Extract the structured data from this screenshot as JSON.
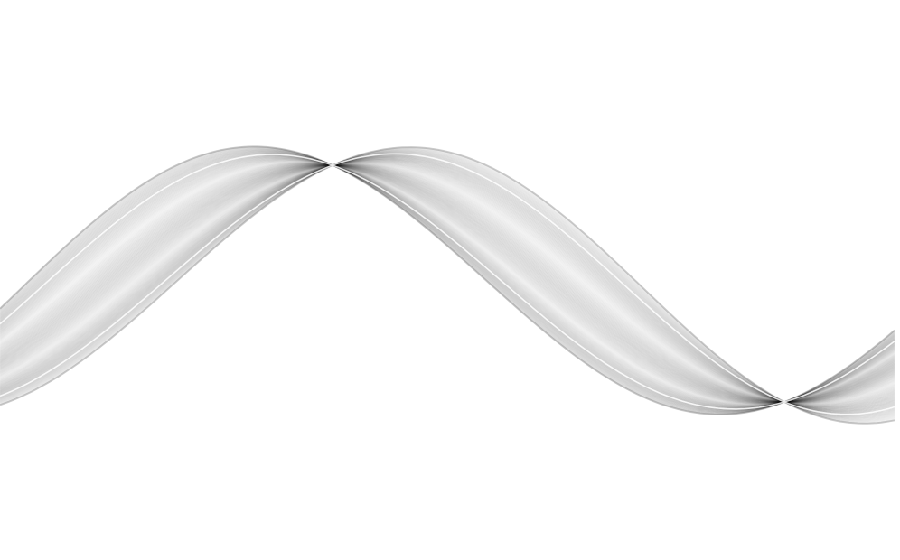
{
  "artwork": {
    "subject": "wave-line-bundle",
    "line_color": "#000000",
    "highlight_color": "#ffffff",
    "background_color": "#ffffff",
    "line_count": 120
  }
}
